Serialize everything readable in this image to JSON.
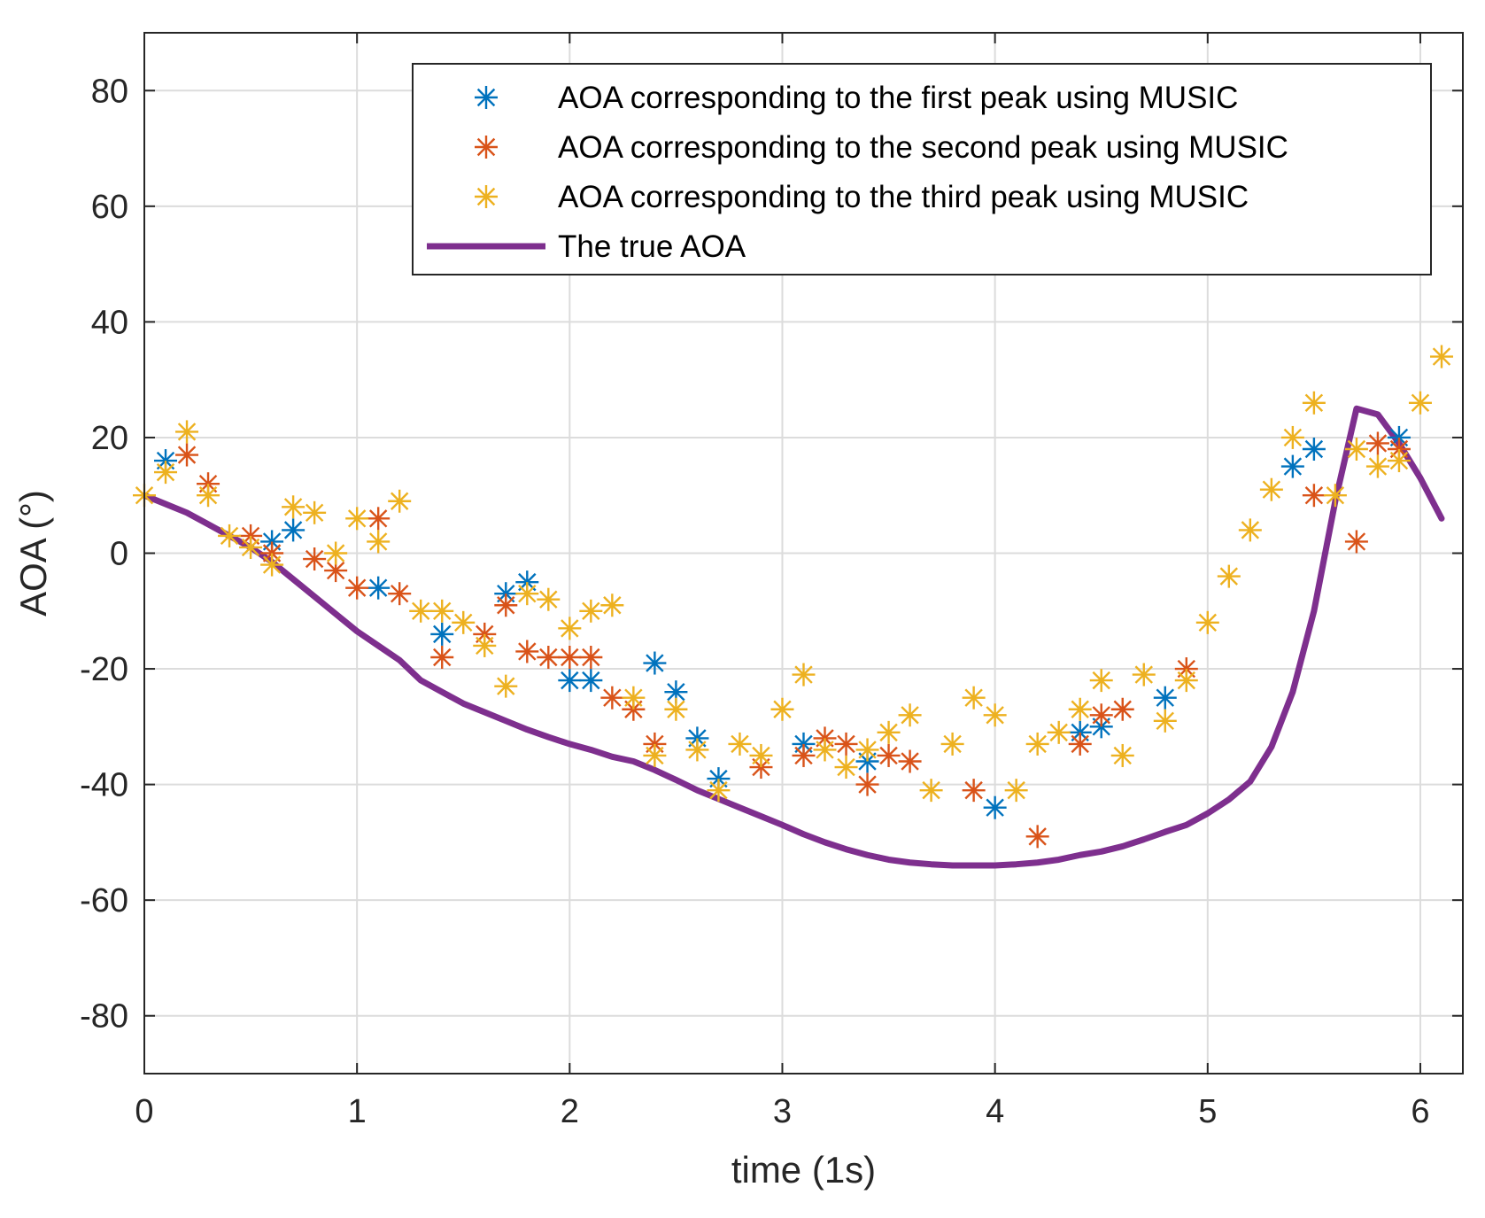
{
  "chart_data": {
    "type": "scatter",
    "title": "",
    "xlabel": "time (1s)",
    "ylabel": "AOA (°)",
    "xlim": [
      0,
      6.2
    ],
    "ylim": [
      -90,
      90
    ],
    "xticks": [
      0,
      1,
      2,
      3,
      4,
      5,
      6
    ],
    "yticks": [
      -80,
      -60,
      -40,
      -20,
      0,
      20,
      40,
      60,
      80
    ],
    "grid": true,
    "legend_position": "top-right",
    "series": [
      {
        "name": "AOA corresponding to the first peak using MUSIC",
        "kind": "scatter",
        "marker": "asterisk",
        "color": "#0072BD",
        "x": [
          0.1,
          0.6,
          0.7,
          1.1,
          1.4,
          1.7,
          1.8,
          2.0,
          2.1,
          2.4,
          2.5,
          2.6,
          2.7,
          3.1,
          3.4,
          4.0,
          4.4,
          4.5,
          4.8,
          5.4,
          5.5,
          5.9
        ],
        "y": [
          16,
          2,
          4,
          -6,
          -14,
          -7,
          -5,
          -22,
          -22,
          -19,
          -24,
          -32,
          -39,
          -33,
          -36,
          -44,
          -31,
          -30,
          -25,
          15,
          18,
          20
        ]
      },
      {
        "name": "AOA corresponding to the second peak using MUSIC",
        "kind": "scatter",
        "marker": "asterisk",
        "color": "#D95319",
        "x": [
          0.2,
          0.3,
          0.5,
          0.6,
          0.8,
          0.9,
          1.0,
          1.1,
          1.2,
          1.4,
          1.6,
          1.7,
          1.8,
          1.9,
          2.0,
          2.1,
          2.2,
          2.3,
          2.4,
          2.9,
          3.1,
          3.2,
          3.3,
          3.4,
          3.5,
          3.6,
          3.9,
          4.2,
          4.4,
          4.5,
          4.6,
          4.9,
          5.5,
          5.7,
          5.8,
          5.9
        ],
        "y": [
          17,
          12,
          3,
          0,
          -1,
          -3,
          -6,
          6,
          -7,
          -18,
          -14,
          -9,
          -17,
          -18,
          -18,
          -18,
          -25,
          -27,
          -33,
          -37,
          -35,
          -32,
          -33,
          -40,
          -35,
          -36,
          -41,
          -49,
          -33,
          -28,
          -27,
          -20,
          10,
          2,
          19,
          18
        ]
      },
      {
        "name": "AOA corresponding to the third peak using MUSIC",
        "kind": "scatter",
        "marker": "asterisk",
        "color": "#EDB120",
        "x": [
          0.0,
          0.1,
          0.2,
          0.3,
          0.4,
          0.5,
          0.6,
          0.7,
          0.8,
          0.9,
          1.0,
          1.1,
          1.2,
          1.3,
          1.4,
          1.5,
          1.6,
          1.7,
          1.8,
          1.9,
          2.0,
          2.1,
          2.2,
          2.3,
          2.4,
          2.5,
          2.6,
          2.7,
          2.8,
          2.9,
          3.0,
          3.1,
          3.2,
          3.3,
          3.4,
          3.5,
          3.6,
          3.7,
          3.8,
          3.9,
          4.0,
          4.1,
          4.2,
          4.3,
          4.4,
          4.5,
          4.6,
          4.7,
          4.8,
          4.9,
          5.0,
          5.1,
          5.2,
          5.3,
          5.4,
          5.5,
          5.6,
          5.7,
          5.8,
          5.9,
          6.0,
          6.1
        ],
        "y": [
          10,
          14,
          21,
          10,
          3,
          1,
          -2,
          8,
          7,
          0,
          6,
          2,
          9,
          -10,
          -10,
          -12,
          -16,
          -23,
          -7,
          -8,
          -13,
          -10,
          -9,
          -25,
          -35,
          -27,
          -34,
          -41,
          -33,
          -35,
          -27,
          -21,
          -34,
          -37,
          -34,
          -31,
          -28,
          -41,
          -33,
          -25,
          -28,
          -41,
          -33,
          -31,
          -27,
          -22,
          -35,
          -21,
          -29,
          -22,
          -12,
          -4,
          4,
          11,
          20,
          26,
          10,
          18,
          15,
          16,
          26,
          34
        ]
      },
      {
        "name": "The true AOA",
        "kind": "line",
        "color": "#7E2F8E",
        "x": [
          0.0,
          0.1,
          0.2,
          0.3,
          0.4,
          0.5,
          0.6,
          0.7,
          0.8,
          0.9,
          1.0,
          1.1,
          1.2,
          1.3,
          1.4,
          1.5,
          1.6,
          1.7,
          1.8,
          1.9,
          2.0,
          2.1,
          2.2,
          2.3,
          2.4,
          2.5,
          2.6,
          2.7,
          2.8,
          2.9,
          3.0,
          3.1,
          3.2,
          3.3,
          3.4,
          3.5,
          3.6,
          3.7,
          3.8,
          3.9,
          4.0,
          4.1,
          4.2,
          4.3,
          4.4,
          4.5,
          4.6,
          4.7,
          4.8,
          4.9,
          5.0,
          5.1,
          5.2,
          5.3,
          5.4,
          5.5,
          5.6,
          5.7,
          5.8,
          5.9,
          6.0,
          6.1
        ],
        "y": [
          10,
          8.5,
          7,
          5,
          3,
          1,
          -1.5,
          -4.5,
          -7.5,
          -10.5,
          -13.5,
          -16,
          -18.5,
          -22,
          -24,
          -26,
          -27.5,
          -29,
          -30.5,
          -31.8,
          -33,
          -34,
          -35.2,
          -36,
          -37.5,
          -39.2,
          -41,
          -42.5,
          -44,
          -45.5,
          -47,
          -48.6,
          -50,
          -51.2,
          -52.2,
          -53,
          -53.5,
          -53.8,
          -54,
          -54,
          -54,
          -53.8,
          -53.5,
          -53,
          -52.2,
          -51.6,
          -50.7,
          -49.5,
          -48.2,
          -47,
          -45,
          -42.6,
          -39.5,
          -33.5,
          -24,
          -10,
          9,
          25,
          24,
          19,
          13,
          6
        ]
      }
    ]
  }
}
